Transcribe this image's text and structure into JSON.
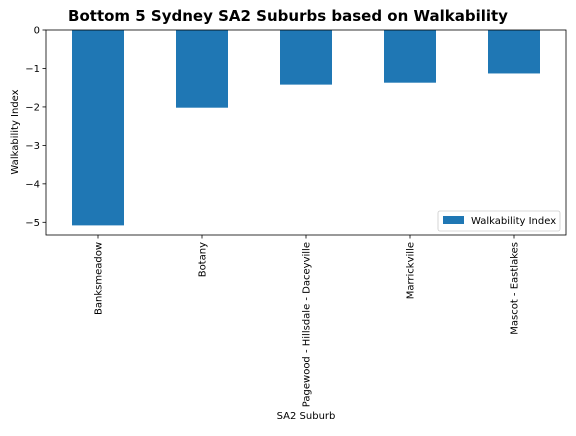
{
  "chart_data": {
    "type": "bar",
    "title": "Bottom 5 Sydney SA2 Suburbs based on Walkability",
    "xlabel": "SA2 Suburb",
    "ylabel": "Walkability Index",
    "categories": [
      "Banksmeadow",
      "Botany",
      "Pagewood - Hillsdale - Daceyville",
      "Marrickville",
      "Mascot - Eastlakes"
    ],
    "series": [
      {
        "name": "Walkability Index",
        "values": [
          -5.08,
          -2.02,
          -1.42,
          -1.37,
          -1.13
        ],
        "color": "#1f77b4"
      }
    ],
    "ylim": [
      -5.33,
      0
    ],
    "yticks": [
      0,
      -1,
      -2,
      -3,
      -4,
      -5
    ],
    "ytick_labels": [
      "0",
      "−1",
      "−2",
      "−3",
      "−4",
      "−5"
    ],
    "grid": false,
    "legend_position": "lower right"
  }
}
